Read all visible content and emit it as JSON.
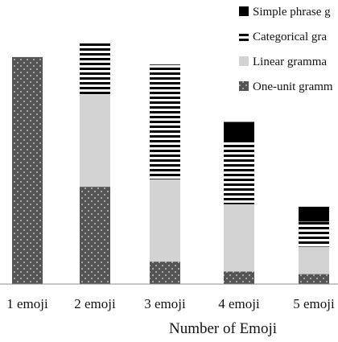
{
  "chart_data": {
    "type": "bar",
    "stacked": true,
    "xlabel": "Number of Emoji",
    "ylabel": "",
    "categories": [
      "1 emoji",
      "2 emoji",
      "3 emoji",
      "4 emoji",
      "5 emoji"
    ],
    "ylim": [
      0,
      100
    ],
    "grid": false,
    "legend_position": "top-right",
    "series": [
      {
        "name": "One-unit gramm",
        "pattern": "dots",
        "color": "#555555",
        "values": [
          91,
          39,
          9,
          5,
          4
        ]
      },
      {
        "name": "Linear gramma",
        "pattern": "solid",
        "color": "#d3d3d3",
        "values": [
          0,
          37,
          33,
          27,
          11
        ]
      },
      {
        "name": "Categorical gra",
        "pattern": "stripes",
        "color": "#000000",
        "values": [
          0,
          21,
          46,
          25,
          10
        ]
      },
      {
        "name": "Simple phrase g",
        "pattern": "solid",
        "color": "#000000",
        "values": [
          0,
          0,
          0,
          8,
          6
        ]
      }
    ]
  }
}
